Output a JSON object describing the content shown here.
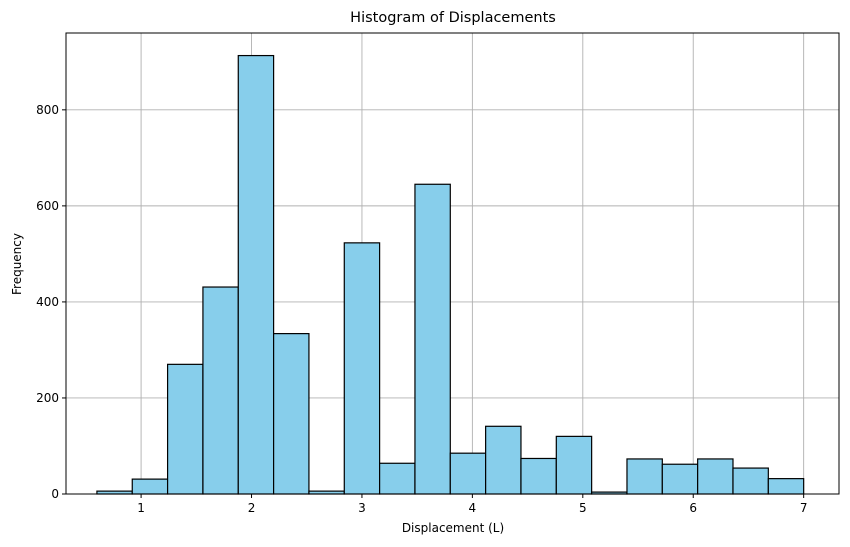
{
  "chart_data": {
    "type": "bar",
    "title": "Histogram of Displacements",
    "xlabel": "Displacement (L)",
    "ylabel": "Frequency",
    "xlim": [
      0.32,
      7.32
    ],
    "ylim": [
      0,
      960
    ],
    "xticks": [
      1,
      2,
      3,
      4,
      5,
      6,
      7
    ],
    "yticks": [
      0,
      200,
      400,
      600,
      800
    ],
    "grid": true,
    "bar_color": "#87ceeb",
    "edge_color": "#000000",
    "bins": [
      {
        "x0": 0.6,
        "x1": 0.92,
        "count": 6
      },
      {
        "x0": 0.92,
        "x1": 1.24,
        "count": 31
      },
      {
        "x0": 1.24,
        "x1": 1.56,
        "count": 270
      },
      {
        "x0": 1.56,
        "x1": 1.88,
        "count": 431
      },
      {
        "x0": 1.88,
        "x1": 2.2,
        "count": 913
      },
      {
        "x0": 2.2,
        "x1": 2.52,
        "count": 334
      },
      {
        "x0": 2.52,
        "x1": 2.84,
        "count": 6
      },
      {
        "x0": 2.84,
        "x1": 3.16,
        "count": 523
      },
      {
        "x0": 3.16,
        "x1": 3.48,
        "count": 64
      },
      {
        "x0": 3.48,
        "x1": 3.8,
        "count": 645
      },
      {
        "x0": 3.8,
        "x1": 4.12,
        "count": 85
      },
      {
        "x0": 4.12,
        "x1": 4.44,
        "count": 141
      },
      {
        "x0": 4.44,
        "x1": 4.76,
        "count": 74
      },
      {
        "x0": 4.76,
        "x1": 5.08,
        "count": 120
      },
      {
        "x0": 5.08,
        "x1": 5.4,
        "count": 4
      },
      {
        "x0": 5.4,
        "x1": 5.72,
        "count": 73
      },
      {
        "x0": 5.72,
        "x1": 6.04,
        "count": 62
      },
      {
        "x0": 6.04,
        "x1": 6.36,
        "count": 73
      },
      {
        "x0": 6.36,
        "x1": 6.68,
        "count": 54
      },
      {
        "x0": 6.68,
        "x1": 7.0,
        "count": 32
      }
    ]
  }
}
